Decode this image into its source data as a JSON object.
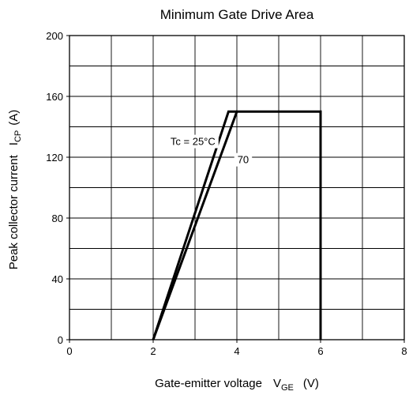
{
  "chart_data": {
    "type": "line",
    "title": "Minimum Gate Drive Area",
    "xlabel": {
      "main": "Gate-emitter voltage",
      "symbol": "V",
      "subscript": "GE",
      "unit": "(V)"
    },
    "ylabel": {
      "main": "Peak collector current",
      "symbol": "I",
      "subscript": "CP",
      "unit": "(A)"
    },
    "xlim": [
      0,
      8
    ],
    "ylim": [
      0,
      200
    ],
    "x_ticks": [
      0,
      2,
      4,
      6,
      8
    ],
    "y_ticks": [
      0,
      40,
      80,
      120,
      160,
      200
    ],
    "x_minor_step": 1,
    "y_minor_step": 20,
    "grid": true,
    "series": [
      {
        "name": "Tc = 25°C",
        "points": [
          [
            2.0,
            0
          ],
          [
            3.8,
            150
          ],
          [
            4.0,
            150
          ]
        ]
      },
      {
        "name": "70",
        "points": [
          [
            2.0,
            0
          ],
          [
            4.0,
            150
          ],
          [
            6.0,
            150
          ],
          [
            6.0,
            0
          ]
        ]
      }
    ],
    "annotations": [
      {
        "text": "Tc = 25°C",
        "x": 2.95,
        "y": 128
      },
      {
        "text": "70",
        "x": 4.15,
        "y": 116
      }
    ],
    "line_color": "#000000"
  }
}
